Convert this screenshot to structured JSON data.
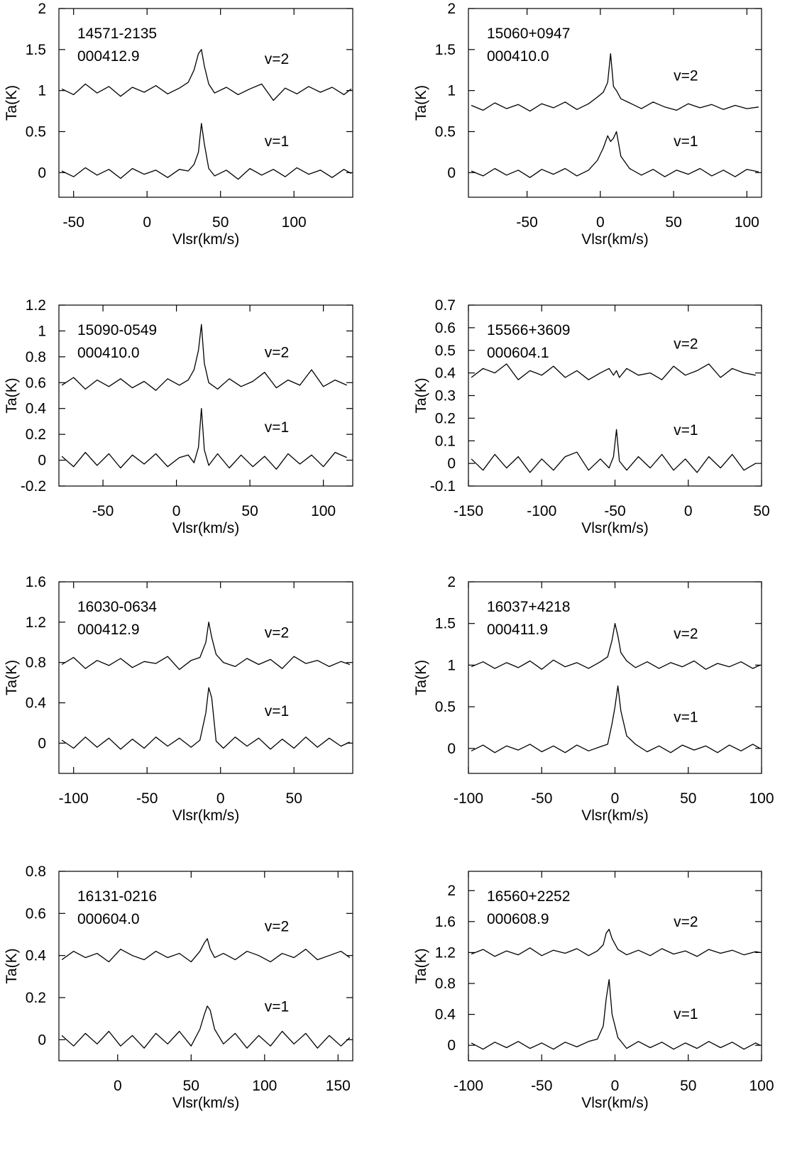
{
  "chart_data": [
    {
      "type": "line",
      "annotations": [
        "14571-2135",
        "000412.9"
      ],
      "xlabel": "Vlsr(km/s)",
      "ylabel": "Ta(K)",
      "xlim": [
        -60,
        140
      ],
      "xticks": [
        -50,
        0,
        50,
        100
      ],
      "ylim": [
        -0.3,
        2
      ],
      "yticks": [
        0,
        0.5,
        1,
        1.5,
        2
      ],
      "x": [
        -58,
        -50,
        -42,
        -34,
        -26,
        -18,
        -10,
        -2,
        6,
        14,
        22,
        28,
        32,
        35,
        37,
        39,
        42,
        46,
        54,
        62,
        70,
        78,
        86,
        94,
        102,
        110,
        118,
        126,
        134,
        139
      ],
      "series": [
        {
          "name": "v=2",
          "color": "#000000",
          "values": [
            1.02,
            0.95,
            1.08,
            0.97,
            1.05,
            0.93,
            1.04,
            0.98,
            1.06,
            0.96,
            1.03,
            1.1,
            1.25,
            1.45,
            1.5,
            1.3,
            1.08,
            0.97,
            1.04,
            0.95,
            1.02,
            1.08,
            0.88,
            1.03,
            0.96,
            1.05,
            0.98,
            1.04,
            0.95,
            1.02
          ]
        },
        {
          "name": "v=1",
          "color": "#000000",
          "values": [
            0.02,
            -0.05,
            0.06,
            -0.03,
            0.04,
            -0.07,
            0.05,
            -0.02,
            0.03,
            -0.06,
            0.04,
            0.02,
            0.1,
            0.25,
            0.6,
            0.35,
            0.05,
            -0.04,
            0.03,
            -0.08,
            0.05,
            -0.03,
            0.04,
            -0.05,
            0.06,
            -0.02,
            0.03,
            -0.06,
            0.04,
            -0.01
          ]
        }
      ]
    },
    {
      "type": "line",
      "annotations": [
        "15060+0947",
        "000410.0"
      ],
      "xlabel": "Vlsr(km/s)",
      "ylabel": "Ta(K)",
      "xlim": [
        -90,
        110
      ],
      "xticks": [
        -50,
        0,
        50,
        100
      ],
      "ylim": [
        -0.3,
        2
      ],
      "yticks": [
        0,
        0.5,
        1,
        1.5,
        2
      ],
      "x": [
        -88,
        -80,
        -72,
        -64,
        -56,
        -48,
        -40,
        -32,
        -24,
        -16,
        -8,
        -2,
        2,
        5,
        7,
        9,
        11,
        14,
        20,
        28,
        36,
        44,
        52,
        60,
        68,
        76,
        84,
        92,
        100,
        108
      ],
      "series": [
        {
          "name": "v=2",
          "color": "#000000",
          "values": [
            0.82,
            0.76,
            0.85,
            0.78,
            0.83,
            0.75,
            0.84,
            0.79,
            0.86,
            0.77,
            0.84,
            0.92,
            0.98,
            1.1,
            1.45,
            1.05,
            1.0,
            0.9,
            0.85,
            0.78,
            0.86,
            0.8,
            0.76,
            0.84,
            0.79,
            0.83,
            0.77,
            0.82,
            0.78,
            0.8
          ]
        },
        {
          "name": "v=1",
          "color": "#000000",
          "values": [
            0.02,
            -0.04,
            0.05,
            -0.03,
            0.03,
            -0.06,
            0.04,
            -0.02,
            0.05,
            -0.04,
            0.03,
            0.15,
            0.3,
            0.45,
            0.38,
            0.42,
            0.5,
            0.2,
            0.05,
            -0.03,
            0.04,
            -0.05,
            0.03,
            -0.02,
            0.05,
            -0.04,
            0.03,
            -0.05,
            0.04,
            0.01
          ]
        }
      ]
    },
    {
      "type": "line",
      "annotations": [
        "15090-0549",
        "000410.0"
      ],
      "xlabel": "Vlsr(km/s)",
      "ylabel": "Ta(K)",
      "xlim": [
        -80,
        120
      ],
      "xticks": [
        -50,
        0,
        50,
        100
      ],
      "ylim": [
        -0.2,
        1.2
      ],
      "yticks": [
        -0.2,
        0,
        0.2,
        0.4,
        0.6,
        0.8,
        1,
        1.2
      ],
      "x": [
        -78,
        -70,
        -62,
        -54,
        -46,
        -38,
        -30,
        -22,
        -14,
        -6,
        2,
        8,
        12,
        15,
        17,
        19,
        22,
        28,
        36,
        44,
        52,
        60,
        68,
        76,
        84,
        92,
        100,
        108,
        116
      ],
      "series": [
        {
          "name": "v=2",
          "color": "#000000",
          "values": [
            0.58,
            0.64,
            0.55,
            0.62,
            0.57,
            0.63,
            0.56,
            0.61,
            0.54,
            0.63,
            0.58,
            0.62,
            0.7,
            0.85,
            1.05,
            0.75,
            0.6,
            0.55,
            0.63,
            0.57,
            0.61,
            0.68,
            0.56,
            0.62,
            0.58,
            0.7,
            0.57,
            0.62,
            0.58
          ]
        },
        {
          "name": "v=1",
          "color": "#000000",
          "values": [
            0.03,
            -0.05,
            0.06,
            -0.04,
            0.05,
            -0.06,
            0.04,
            -0.03,
            0.05,
            -0.05,
            0.02,
            0.04,
            -0.02,
            0.1,
            0.4,
            0.08,
            -0.04,
            0.05,
            -0.06,
            0.04,
            -0.05,
            0.03,
            -0.07,
            0.05,
            -0.03,
            0.04,
            -0.05,
            0.06,
            0.02
          ]
        }
      ]
    },
    {
      "type": "line",
      "annotations": [
        "15566+3609",
        "000604.1"
      ],
      "xlabel": "Vlsr(km/s)",
      "ylabel": "Ta(K)",
      "xlim": [
        -150,
        50
      ],
      "xticks": [
        -150,
        -100,
        -50,
        0,
        50
      ],
      "ylim": [
        -0.1,
        0.7
      ],
      "yticks": [
        -0.1,
        0,
        0.1,
        0.2,
        0.3,
        0.4,
        0.5,
        0.6,
        0.7
      ],
      "x": [
        -148,
        -140,
        -132,
        -124,
        -116,
        -108,
        -100,
        -92,
        -84,
        -76,
        -68,
        -60,
        -54,
        -51,
        -49,
        -47,
        -42,
        -34,
        -26,
        -18,
        -10,
        -2,
        6,
        14,
        22,
        30,
        38,
        46
      ],
      "series": [
        {
          "name": "v=2",
          "color": "#000000",
          "values": [
            0.38,
            0.42,
            0.4,
            0.44,
            0.37,
            0.41,
            0.39,
            0.43,
            0.38,
            0.41,
            0.37,
            0.4,
            0.42,
            0.39,
            0.41,
            0.38,
            0.42,
            0.39,
            0.4,
            0.37,
            0.43,
            0.39,
            0.41,
            0.44,
            0.38,
            0.42,
            0.4,
            0.39
          ]
        },
        {
          "name": "v=1",
          "color": "#000000",
          "values": [
            0.02,
            -0.03,
            0.04,
            -0.02,
            0.03,
            -0.04,
            0.02,
            -0.03,
            0.03,
            0.05,
            -0.03,
            0.02,
            -0.02,
            0.03,
            0.15,
            0.01,
            -0.03,
            0.03,
            -0.02,
            0.04,
            -0.03,
            0.02,
            -0.04,
            0.03,
            -0.02,
            0.04,
            -0.03,
            0.0
          ]
        }
      ]
    },
    {
      "type": "line",
      "annotations": [
        "16030-0634",
        "000412.9"
      ],
      "xlabel": "Vlsr(km/s)",
      "ylabel": "Ta(K)",
      "xlim": [
        -110,
        90
      ],
      "xticks": [
        -100,
        -50,
        0,
        50
      ],
      "ylim": [
        -0.3,
        1.6
      ],
      "yticks": [
        0,
        0.4,
        0.8,
        1.2,
        1.6
      ],
      "x": [
        -108,
        -100,
        -92,
        -84,
        -76,
        -68,
        -60,
        -52,
        -44,
        -36,
        -28,
        -20,
        -14,
        -10,
        -8,
        -6,
        -3,
        2,
        10,
        18,
        26,
        34,
        42,
        50,
        58,
        66,
        74,
        82,
        88
      ],
      "series": [
        {
          "name": "v=2",
          "color": "#000000",
          "values": [
            0.78,
            0.85,
            0.74,
            0.82,
            0.77,
            0.84,
            0.75,
            0.81,
            0.79,
            0.86,
            0.73,
            0.82,
            0.85,
            1.0,
            1.2,
            1.05,
            0.88,
            0.8,
            0.76,
            0.84,
            0.78,
            0.83,
            0.74,
            0.86,
            0.79,
            0.82,
            0.76,
            0.81,
            0.78
          ]
        },
        {
          "name": "v=1",
          "color": "#000000",
          "values": [
            0.03,
            -0.05,
            0.06,
            -0.04,
            0.05,
            -0.06,
            0.04,
            -0.05,
            0.06,
            -0.03,
            0.05,
            -0.04,
            0.03,
            0.3,
            0.55,
            0.45,
            0.02,
            -0.05,
            0.06,
            -0.03,
            0.05,
            -0.06,
            0.04,
            -0.05,
            0.06,
            -0.04,
            0.05,
            -0.03,
            0.01
          ]
        }
      ]
    },
    {
      "type": "line",
      "annotations": [
        "16037+4218",
        "000411.9"
      ],
      "xlabel": "Vlsr(km/s)",
      "ylabel": "Ta(K)",
      "xlim": [
        -100,
        100
      ],
      "xticks": [
        -100,
        -50,
        0,
        50,
        100
      ],
      "ylim": [
        -0.3,
        2
      ],
      "yticks": [
        0,
        0.5,
        1,
        1.5,
        2
      ],
      "x": [
        -98,
        -90,
        -82,
        -74,
        -66,
        -58,
        -50,
        -42,
        -34,
        -26,
        -18,
        -10,
        -5,
        -2,
        0,
        2,
        4,
        8,
        14,
        22,
        30,
        38,
        46,
        54,
        62,
        70,
        78,
        86,
        94,
        99
      ],
      "series": [
        {
          "name": "v=2",
          "color": "#000000",
          "values": [
            0.98,
            1.04,
            0.96,
            1.03,
            0.97,
            1.05,
            0.95,
            1.06,
            0.98,
            1.03,
            0.96,
            1.04,
            1.1,
            1.3,
            1.5,
            1.35,
            1.15,
            1.05,
            0.97,
            1.04,
            0.96,
            1.03,
            0.98,
            1.05,
            0.95,
            1.02,
            0.98,
            1.04,
            0.96,
            1.0
          ]
        },
        {
          "name": "v=1",
          "color": "#000000",
          "values": [
            -0.03,
            0.04,
            -0.05,
            0.03,
            -0.02,
            0.05,
            -0.04,
            0.03,
            -0.05,
            0.04,
            -0.03,
            0.02,
            0.05,
            0.3,
            0.5,
            0.75,
            0.45,
            0.15,
            0.05,
            -0.04,
            0.03,
            -0.05,
            0.04,
            -0.02,
            0.03,
            -0.05,
            0.04,
            -0.03,
            0.05,
            0.0
          ]
        }
      ]
    },
    {
      "type": "line",
      "annotations": [
        "16131-0216",
        "000604.0"
      ],
      "xlabel": "Vlsr(km/s)",
      "ylabel": "Ta(K)",
      "xlim": [
        -40,
        160
      ],
      "xticks": [
        0,
        50,
        100,
        150
      ],
      "ylim": [
        -0.1,
        0.8
      ],
      "yticks": [
        0,
        0.2,
        0.4,
        0.6,
        0.8
      ],
      "x": [
        -38,
        -30,
        -22,
        -14,
        -6,
        2,
        10,
        18,
        26,
        34,
        42,
        50,
        56,
        59,
        61,
        63,
        66,
        72,
        80,
        88,
        96,
        104,
        112,
        120,
        128,
        136,
        144,
        152,
        158
      ],
      "series": [
        {
          "name": "v=2",
          "color": "#000000",
          "values": [
            0.38,
            0.42,
            0.39,
            0.41,
            0.37,
            0.43,
            0.4,
            0.38,
            0.42,
            0.39,
            0.41,
            0.37,
            0.42,
            0.46,
            0.48,
            0.43,
            0.39,
            0.41,
            0.38,
            0.42,
            0.4,
            0.37,
            0.41,
            0.39,
            0.43,
            0.38,
            0.4,
            0.42,
            0.39
          ]
        },
        {
          "name": "v=1",
          "color": "#000000",
          "values": [
            0.02,
            -0.03,
            0.03,
            -0.02,
            0.04,
            -0.03,
            0.02,
            -0.04,
            0.03,
            -0.02,
            0.04,
            -0.03,
            0.05,
            0.12,
            0.16,
            0.14,
            0.05,
            -0.02,
            0.03,
            -0.04,
            0.02,
            -0.03,
            0.04,
            -0.02,
            0.03,
            -0.04,
            0.02,
            -0.03,
            0.01
          ]
        }
      ]
    },
    {
      "type": "line",
      "annotations": [
        "16560+2252",
        "000608.9"
      ],
      "xlabel": "Vlsr(km/s)",
      "ylabel": "Ta(K)",
      "xlim": [
        -100,
        100
      ],
      "xticks": [
        -100,
        -50,
        0,
        50,
        100
      ],
      "ylim": [
        -0.2,
        2.25
      ],
      "yticks": [
        0,
        0.4,
        0.8,
        1.2,
        1.6,
        2
      ],
      "x": [
        -98,
        -90,
        -82,
        -74,
        -66,
        -58,
        -50,
        -42,
        -34,
        -26,
        -18,
        -12,
        -8,
        -6,
        -4,
        -2,
        2,
        8,
        16,
        24,
        32,
        40,
        48,
        56,
        64,
        72,
        80,
        88,
        96,
        99
      ],
      "series": [
        {
          "name": "v=2",
          "color": "#000000",
          "values": [
            1.18,
            1.24,
            1.15,
            1.22,
            1.17,
            1.26,
            1.16,
            1.23,
            1.19,
            1.25,
            1.16,
            1.22,
            1.3,
            1.45,
            1.5,
            1.38,
            1.24,
            1.17,
            1.23,
            1.16,
            1.25,
            1.18,
            1.22,
            1.15,
            1.24,
            1.19,
            1.23,
            1.17,
            1.21,
            1.2
          ]
        },
        {
          "name": "v=1",
          "color": "#000000",
          "values": [
            0.03,
            -0.05,
            0.04,
            -0.03,
            0.05,
            -0.04,
            0.03,
            -0.05,
            0.04,
            -0.02,
            0.05,
            0.08,
            0.25,
            0.6,
            0.85,
            0.4,
            0.1,
            -0.04,
            0.05,
            -0.03,
            0.04,
            -0.05,
            0.03,
            -0.04,
            0.05,
            -0.03,
            0.04,
            -0.05,
            0.03,
            0.0
          ]
        }
      ]
    }
  ]
}
